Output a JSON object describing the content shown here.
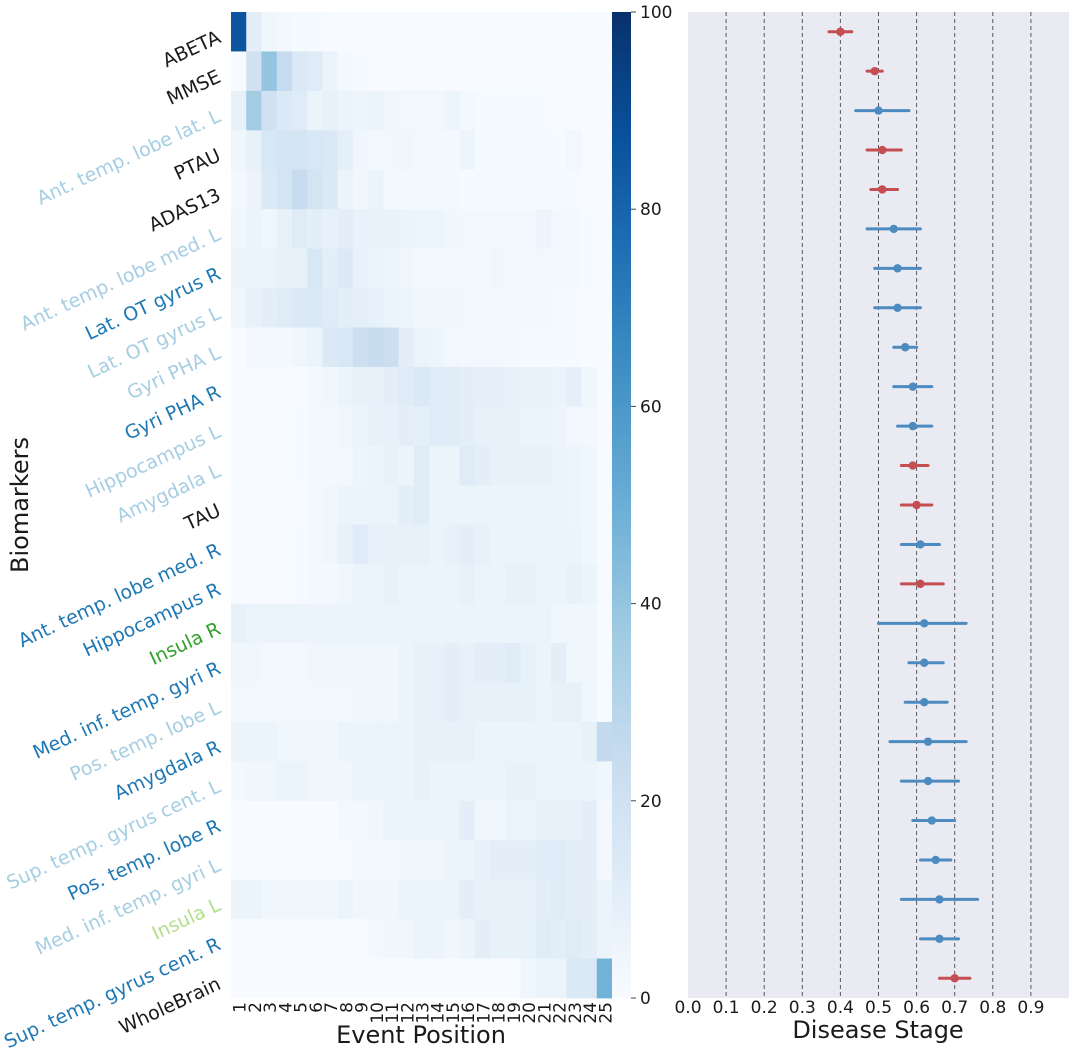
{
  "chart_data": [
    {
      "type": "heatmap",
      "title": "",
      "xlabel": "Event Position",
      "ylabel": "Biomarkers",
      "x_ticks": [
        "1",
        "2",
        "3",
        "4",
        "5",
        "6",
        "7",
        "8",
        "9",
        "10",
        "11",
        "12",
        "13",
        "14",
        "15",
        "16",
        "17",
        "18",
        "19",
        "20",
        "21",
        "22",
        "23",
        "24",
        "25"
      ],
      "y_labels": [
        {
          "label": "ABETA",
          "color": "#1a1a1a"
        },
        {
          "label": "MMSE",
          "color": "#1a1a1a"
        },
        {
          "label": "Ant. temp. lobe lat. L",
          "color": "#a6cee3"
        },
        {
          "label": "PTAU",
          "color": "#1a1a1a"
        },
        {
          "label": "ADAS13",
          "color": "#1a1a1a"
        },
        {
          "label": "Ant. temp. lobe med. L",
          "color": "#a6cee3"
        },
        {
          "label": "Lat. OT gyrus R",
          "color": "#1f78b4"
        },
        {
          "label": "Lat. OT gyrus L",
          "color": "#a6cee3"
        },
        {
          "label": "Gyri PHA L",
          "color": "#a6cee3"
        },
        {
          "label": "Gyri PHA R",
          "color": "#1f78b4"
        },
        {
          "label": "Hippocampus L",
          "color": "#a6cee3"
        },
        {
          "label": "Amygdala L",
          "color": "#a6cee3"
        },
        {
          "label": "TAU",
          "color": "#1a1a1a"
        },
        {
          "label": "Ant. temp. lobe med. R",
          "color": "#1f78b4"
        },
        {
          "label": "Hippocampus R",
          "color": "#1f78b4"
        },
        {
          "label": "Insula R",
          "color": "#33a02c"
        },
        {
          "label": "Med. inf. temp. gyri R",
          "color": "#1f78b4"
        },
        {
          "label": "Pos. temp. lobe L",
          "color": "#a6cee3"
        },
        {
          "label": "Amygdala R",
          "color": "#1f78b4"
        },
        {
          "label": "Sup. temp. gyrus cent. L",
          "color": "#a6cee3"
        },
        {
          "label": "Pos. temp. lobe R",
          "color": "#1f78b4"
        },
        {
          "label": "Med. inf. temp. gyri L",
          "color": "#a6cee3"
        },
        {
          "label": "Insula L",
          "color": "#b2df8a"
        },
        {
          "label": "Sup. temp. gyrus cent. R",
          "color": "#1f78b4"
        },
        {
          "label": "WholeBrain",
          "color": "#1a1a1a"
        }
      ],
      "colorbar": {
        "min": 0,
        "max": 100,
        "ticks": [
          0,
          20,
          40,
          60,
          80,
          100
        ],
        "colormap": "Blues"
      },
      "values": [
        [
          86,
          10,
          4,
          2,
          1,
          1,
          0,
          0,
          0,
          0,
          0,
          0,
          0,
          0,
          0,
          0,
          0,
          0,
          0,
          0,
          0,
          0,
          0,
          0,
          0
        ],
        [
          0,
          20,
          40,
          25,
          14,
          12,
          6,
          2,
          1,
          0,
          0,
          0,
          0,
          0,
          0,
          0,
          0,
          0,
          0,
          0,
          0,
          0,
          0,
          0,
          0
        ],
        [
          8,
          36,
          20,
          14,
          12,
          6,
          8,
          6,
          5,
          6,
          4,
          3,
          3,
          3,
          5,
          2,
          1,
          1,
          1,
          1,
          1,
          0,
          0,
          0,
          0
        ],
        [
          4,
          8,
          16,
          18,
          18,
          16,
          14,
          9,
          4,
          3,
          3,
          4,
          2,
          2,
          2,
          5,
          1,
          1,
          1,
          1,
          1,
          1,
          3,
          0,
          0
        ],
        [
          2,
          6,
          14,
          18,
          24,
          18,
          14,
          6,
          4,
          6,
          2,
          2,
          2,
          2,
          2,
          1,
          1,
          1,
          1,
          1,
          1,
          1,
          1,
          0,
          0
        ],
        [
          4,
          6,
          4,
          8,
          12,
          10,
          8,
          10,
          7,
          7,
          7,
          6,
          5,
          5,
          4,
          3,
          3,
          3,
          3,
          3,
          5,
          3,
          2,
          1,
          0
        ],
        [
          6,
          6,
          6,
          8,
          8,
          16,
          10,
          14,
          7,
          6,
          5,
          4,
          2,
          2,
          2,
          3,
          2,
          4,
          2,
          3,
          3,
          2,
          2,
          1,
          0
        ],
        [
          4,
          8,
          10,
          12,
          14,
          14,
          12,
          10,
          9,
          8,
          6,
          5,
          4,
          4,
          4,
          3,
          2,
          2,
          2,
          2,
          2,
          1,
          1,
          0,
          0
        ],
        [
          0,
          2,
          2,
          2,
          4,
          6,
          14,
          16,
          22,
          24,
          22,
          10,
          6,
          5,
          3,
          2,
          2,
          2,
          2,
          1,
          1,
          1,
          1,
          0,
          0
        ],
        [
          0,
          0,
          0,
          0,
          0,
          2,
          4,
          6,
          8,
          8,
          10,
          12,
          14,
          12,
          12,
          10,
          9,
          9,
          8,
          7,
          7,
          6,
          9,
          4,
          0
        ],
        [
          0,
          0,
          0,
          0,
          1,
          2,
          2,
          4,
          6,
          8,
          8,
          10,
          9,
          12,
          12,
          10,
          8,
          8,
          8,
          6,
          6,
          5,
          3,
          2,
          0
        ],
        [
          0,
          0,
          0,
          0,
          1,
          2,
          2,
          3,
          5,
          6,
          8,
          6,
          12,
          6,
          6,
          12,
          10,
          8,
          8,
          8,
          8,
          6,
          5,
          4,
          0
        ],
        [
          0,
          0,
          0,
          0,
          0,
          2,
          4,
          6,
          6,
          6,
          6,
          10,
          12,
          6,
          6,
          6,
          6,
          6,
          6,
          6,
          6,
          6,
          5,
          4,
          0
        ],
        [
          0,
          0,
          0,
          0,
          1,
          2,
          4,
          8,
          12,
          8,
          8,
          8,
          8,
          6,
          8,
          10,
          8,
          6,
          6,
          6,
          6,
          6,
          6,
          4,
          0
        ],
        [
          0,
          0,
          0,
          0,
          1,
          2,
          2,
          4,
          6,
          6,
          8,
          6,
          6,
          6,
          6,
          8,
          6,
          6,
          8,
          8,
          6,
          6,
          8,
          6,
          0
        ],
        [
          8,
          6,
          6,
          6,
          6,
          6,
          6,
          6,
          6,
          6,
          6,
          6,
          6,
          6,
          6,
          6,
          6,
          6,
          6,
          6,
          6,
          4,
          4,
          4,
          0
        ],
        [
          4,
          4,
          2,
          2,
          2,
          4,
          4,
          4,
          4,
          4,
          4,
          6,
          8,
          8,
          10,
          8,
          10,
          10,
          12,
          8,
          6,
          10,
          4,
          4,
          0
        ],
        [
          3,
          3,
          3,
          3,
          3,
          3,
          3,
          3,
          4,
          4,
          4,
          6,
          8,
          8,
          10,
          8,
          8,
          8,
          8,
          8,
          6,
          8,
          8,
          4,
          0
        ],
        [
          6,
          6,
          6,
          4,
          4,
          4,
          4,
          6,
          6,
          6,
          6,
          6,
          8,
          8,
          8,
          8,
          6,
          6,
          6,
          6,
          6,
          6,
          6,
          8,
          26
        ],
        [
          2,
          4,
          4,
          6,
          6,
          4,
          4,
          4,
          6,
          6,
          6,
          6,
          8,
          6,
          6,
          6,
          6,
          6,
          8,
          8,
          6,
          6,
          6,
          6,
          4
        ],
        [
          0,
          0,
          0,
          0,
          0,
          0,
          0,
          2,
          2,
          4,
          6,
          6,
          6,
          6,
          6,
          10,
          4,
          4,
          6,
          6,
          8,
          8,
          8,
          10,
          2
        ],
        [
          0,
          0,
          0,
          0,
          0,
          0,
          0,
          0,
          2,
          2,
          2,
          4,
          4,
          4,
          6,
          6,
          8,
          10,
          10,
          10,
          12,
          12,
          10,
          10,
          2
        ],
        [
          6,
          6,
          4,
          4,
          4,
          4,
          4,
          6,
          4,
          4,
          4,
          6,
          6,
          6,
          6,
          10,
          8,
          8,
          8,
          8,
          10,
          12,
          10,
          10,
          6
        ],
        [
          0,
          0,
          0,
          0,
          0,
          0,
          0,
          0,
          0,
          2,
          4,
          4,
          6,
          6,
          4,
          6,
          10,
          8,
          8,
          8,
          12,
          10,
          12,
          10,
          6
        ],
        [
          0,
          0,
          0,
          0,
          0,
          0,
          0,
          0,
          0,
          0,
          0,
          0,
          0,
          0,
          0,
          0,
          0,
          0,
          0,
          4,
          6,
          6,
          14,
          14,
          48
        ]
      ]
    },
    {
      "type": "scatter",
      "title": "",
      "xlabel": "Disease Stage",
      "ylabel": "",
      "xlim": [
        0,
        1
      ],
      "x_ticks": [
        "0.0",
        "0.1",
        "0.2",
        "0.3",
        "0.4",
        "0.5",
        "0.6",
        "0.7",
        "0.8",
        "0.9"
      ],
      "grid": "vertical dashed",
      "series": [
        {
          "color": "#c44e52",
          "points": [
            {
              "row": 0,
              "x": 0.4,
              "ci": [
                0.37,
                0.43
              ]
            },
            {
              "row": 1,
              "x": 0.49,
              "ci": [
                0.47,
                0.51
              ]
            },
            {
              "row": 3,
              "x": 0.51,
              "ci": [
                0.47,
                0.56
              ]
            },
            {
              "row": 4,
              "x": 0.51,
              "ci": [
                0.48,
                0.55
              ]
            },
            {
              "row": 11,
              "x": 0.59,
              "ci": [
                0.56,
                0.63
              ]
            },
            {
              "row": 12,
              "x": 0.6,
              "ci": [
                0.56,
                0.64
              ]
            },
            {
              "row": 14,
              "x": 0.61,
              "ci": [
                0.56,
                0.67
              ]
            },
            {
              "row": 24,
              "x": 0.7,
              "ci": [
                0.66,
                0.74
              ]
            }
          ]
        },
        {
          "color": "#4c8bc0",
          "points": [
            {
              "row": 2,
              "x": 0.5,
              "ci": [
                0.44,
                0.58
              ]
            },
            {
              "row": 5,
              "x": 0.54,
              "ci": [
                0.47,
                0.61
              ]
            },
            {
              "row": 6,
              "x": 0.55,
              "ci": [
                0.49,
                0.61
              ]
            },
            {
              "row": 7,
              "x": 0.55,
              "ci": [
                0.49,
                0.61
              ]
            },
            {
              "row": 8,
              "x": 0.57,
              "ci": [
                0.54,
                0.6
              ]
            },
            {
              "row": 9,
              "x": 0.59,
              "ci": [
                0.54,
                0.64
              ]
            },
            {
              "row": 10,
              "x": 0.59,
              "ci": [
                0.55,
                0.64
              ]
            },
            {
              "row": 13,
              "x": 0.61,
              "ci": [
                0.56,
                0.66
              ]
            },
            {
              "row": 15,
              "x": 0.62,
              "ci": [
                0.5,
                0.73
              ]
            },
            {
              "row": 16,
              "x": 0.62,
              "ci": [
                0.58,
                0.67
              ]
            },
            {
              "row": 17,
              "x": 0.62,
              "ci": [
                0.57,
                0.68
              ]
            },
            {
              "row": 18,
              "x": 0.63,
              "ci": [
                0.53,
                0.73
              ]
            },
            {
              "row": 19,
              "x": 0.63,
              "ci": [
                0.56,
                0.71
              ]
            },
            {
              "row": 20,
              "x": 0.64,
              "ci": [
                0.59,
                0.7
              ]
            },
            {
              "row": 21,
              "x": 0.65,
              "ci": [
                0.61,
                0.69
              ]
            },
            {
              "row": 22,
              "x": 0.66,
              "ci": [
                0.56,
                0.76
              ]
            },
            {
              "row": 23,
              "x": 0.66,
              "ci": [
                0.61,
                0.71
              ]
            }
          ]
        }
      ]
    }
  ]
}
